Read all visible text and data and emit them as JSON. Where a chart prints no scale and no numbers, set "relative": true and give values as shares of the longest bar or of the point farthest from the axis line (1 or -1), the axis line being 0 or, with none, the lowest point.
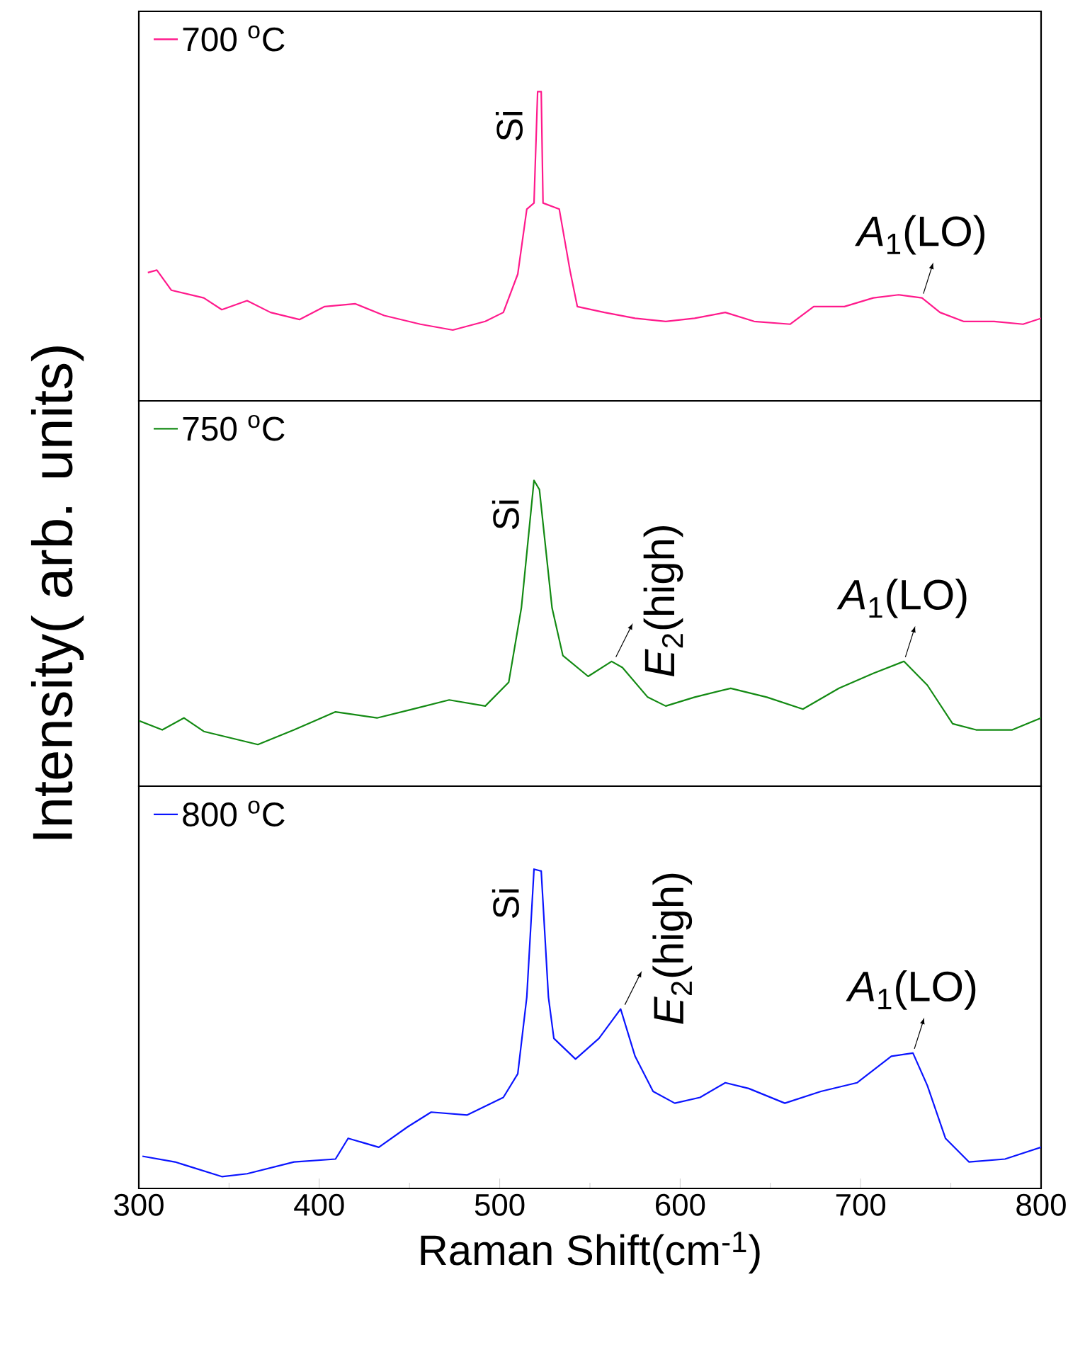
{
  "chart_data": [
    {
      "type": "line",
      "relative": true,
      "xlim": [
        300,
        800
      ],
      "tick_labels": false,
      "legend": "top left",
      "series": [
        {
          "name": "700 $^{o}$C",
          "color": "#ff1a8c",
          "x": [
            305,
            310,
            318,
            336,
            346,
            360,
            373,
            389,
            403,
            420,
            436,
            456,
            474,
            492,
            502,
            510,
            515,
            519,
            521,
            523,
            524,
            533,
            539,
            543,
            558,
            575,
            592,
            608,
            625,
            641,
            661,
            674,
            691,
            707,
            721,
            734,
            744,
            757,
            774,
            790,
            800
          ],
          "values": [
            0.415,
            0.423,
            0.358,
            0.333,
            0.295,
            0.324,
            0.286,
            0.263,
            0.305,
            0.314,
            0.276,
            0.248,
            0.229,
            0.257,
            0.286,
            0.41,
            0.62,
            0.64,
            1.0,
            1.0,
            0.64,
            0.62,
            0.42,
            0.305,
            0.286,
            0.267,
            0.257,
            0.267,
            0.286,
            0.257,
            0.248,
            0.305,
            0.305,
            0.333,
            0.343,
            0.333,
            0.286,
            0.257,
            0.257,
            0.248,
            0.267
          ]
        }
      ],
      "annotations": [
        {
          "text": "Si",
          "x": 521,
          "y": 1.0
        },
        {
          "text": "*A*$_{1}$(LO)",
          "x": 734,
          "y": 0.333
        }
      ]
    },
    {
      "type": "line",
      "relative": true,
      "xlim": [
        300,
        800
      ],
      "tick_labels": false,
      "legend": "top left",
      "ylabel": "Intensity( arb. units)",
      "series": [
        {
          "name": "750 $^{o}$C",
          "color": "#138a13",
          "x": [
            300,
            313,
            325,
            336,
            366,
            386,
            409,
            432,
            452,
            472,
            492,
            505,
            512,
            519,
            522,
            529,
            535,
            549,
            562,
            568,
            582,
            592,
            608,
            628,
            648,
            668,
            688,
            707,
            724,
            737,
            751,
            764,
            784,
            800
          ],
          "values": [
            0.214,
            0.184,
            0.223,
            0.179,
            0.136,
            0.184,
            0.243,
            0.223,
            0.252,
            0.282,
            0.262,
            0.34,
            0.583,
            1.0,
            0.97,
            0.583,
            0.427,
            0.359,
            0.408,
            0.388,
            0.291,
            0.262,
            0.291,
            0.32,
            0.291,
            0.252,
            0.32,
            0.369,
            0.408,
            0.33,
            0.204,
            0.184,
            0.184,
            0.223
          ]
        }
      ],
      "annotations": [
        {
          "text": "Si",
          "x": 519,
          "y": 1.0
        },
        {
          "text": "*E*$_{2}$(high)",
          "x": 562,
          "y": 0.408
        },
        {
          "text": "*A*$_{1}$(LO)",
          "x": 724,
          "y": 0.408
        }
      ]
    },
    {
      "type": "line",
      "relative": true,
      "xlim": [
        300,
        800
      ],
      "xticks": [
        300,
        400,
        500,
        600,
        700,
        800
      ],
      "tick_labels": "x",
      "legend": "top left",
      "xlabel": "Raman Shift(cm$^{-1}$)",
      "series": [
        {
          "name": "800 $^{o}$C",
          "color": "#0a14ff",
          "x": [
            302,
            320,
            346,
            360,
            386,
            409,
            416,
            433,
            449,
            462,
            482,
            502,
            510,
            515,
            519,
            523,
            527,
            530,
            542,
            555,
            567,
            575,
            585,
            597,
            611,
            625,
            638,
            658,
            678,
            698,
            717,
            729,
            737,
            747,
            760,
            780,
            800
          ],
          "values": [
            0.101,
            0.083,
            0.037,
            0.046,
            0.083,
            0.092,
            0.157,
            0.129,
            0.193,
            0.239,
            0.23,
            0.285,
            0.359,
            0.599,
            1.0,
            0.994,
            0.599,
            0.47,
            0.405,
            0.47,
            0.562,
            0.414,
            0.304,
            0.267,
            0.285,
            0.331,
            0.313,
            0.267,
            0.304,
            0.331,
            0.414,
            0.424,
            0.322,
            0.157,
            0.083,
            0.092,
            0.129
          ]
        }
      ],
      "annotations": [
        {
          "text": "Si",
          "x": 519,
          "y": 1.0
        },
        {
          "text": "*E*$_{2}$(high)",
          "x": 567,
          "y": 0.562
        },
        {
          "text": "*A*$_{1}$(LO)",
          "x": 729,
          "y": 0.424
        }
      ]
    }
  ]
}
